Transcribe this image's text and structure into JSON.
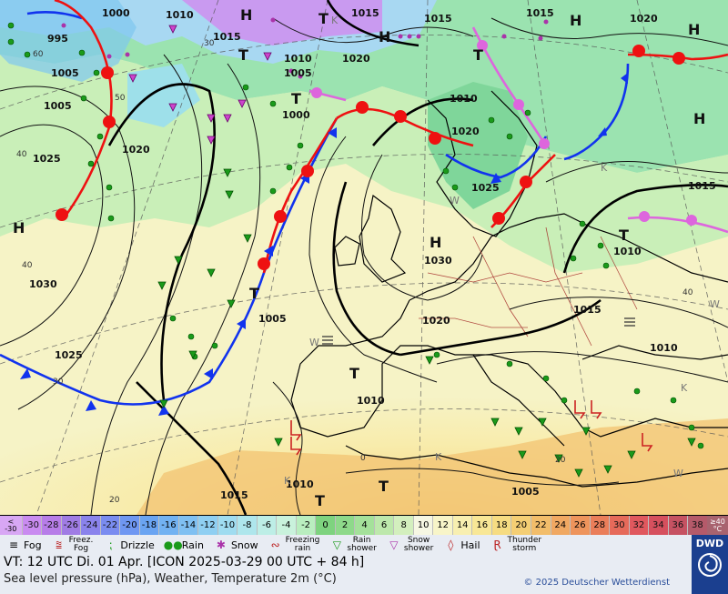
{
  "map": {
    "highs": [
      "H",
      "H",
      "H",
      "H",
      "H",
      "H",
      "H"
    ],
    "troughs": [
      "T",
      "T",
      "T",
      "T",
      "T",
      "T",
      "T",
      "T",
      "T"
    ],
    "isobar_labels": [
      "1000",
      "1010",
      "1015",
      "1015",
      "1015",
      "1020",
      "995",
      "1005",
      "1005",
      "1015",
      "1005",
      "1010",
      "1020",
      "1025",
      "1000",
      "1010",
      "1020",
      "1025",
      "1030",
      "1030",
      "1025",
      "1020",
      "1005",
      "1020",
      "1010",
      "1015",
      "1010",
      "1015",
      "1010",
      "1010",
      "1015",
      "1005"
    ],
    "temp_labels": [
      "60",
      "50",
      "40",
      "40",
      "30",
      "20",
      "30",
      "40",
      "20",
      "0"
    ],
    "k_labels": [
      "K",
      "K",
      "K",
      "K",
      "K"
    ],
    "w_labels": [
      "W",
      "W",
      "W",
      "W"
    ]
  },
  "colors": {
    "cold_front": "#1133ee",
    "warm_front": "#ee1111",
    "occluded_front": "#dd66dd"
  },
  "scale": {
    "min_label_top": "<",
    "min_label_bottom": "-30",
    "max_label_top": "≥40",
    "max_label_bottom": "°C",
    "values": [
      "-30",
      "-28",
      "-26",
      "-24",
      "-22",
      "-20",
      "-18",
      "-16",
      "-14",
      "-12",
      "-10",
      "-8",
      "-6",
      "-4",
      "-2",
      "0",
      "2",
      "4",
      "6",
      "8",
      "10",
      "12",
      "14",
      "16",
      "18",
      "20",
      "22",
      "24",
      "26",
      "28",
      "30",
      "32",
      "34",
      "36",
      "38"
    ],
    "colors": [
      "#c98bf0",
      "#b77de8",
      "#a07ce4",
      "#8a83ec",
      "#7a8cf0",
      "#6f97f2",
      "#6aa4f2",
      "#72b2f2",
      "#7fc0f2",
      "#8fcff2",
      "#9fdcf0",
      "#aee6ec",
      "#bdeee6",
      "#c9f2dc",
      "#b9eebf",
      "#7ed37f",
      "#8ed98a",
      "#a4e19a",
      "#bde8ac",
      "#d3efbe",
      "#f6f7e3",
      "#f8f5c8",
      "#f8efb0",
      "#f8e796",
      "#f6dc82",
      "#f4ce74",
      "#f2bd6a",
      "#f0a862",
      "#ee945c",
      "#ea7e5a",
      "#e66a5a",
      "#e0585e",
      "#d6505e",
      "#c65262",
      "#b55a6a"
    ]
  },
  "legend": {
    "fog": "Fog",
    "freezing_fog_1": "Freez.",
    "freezing_fog_2": "Fog",
    "drizzle": "Drizzle",
    "rain": "Rain",
    "snow": "Snow",
    "freezing_rain_1": "Freezing",
    "freezing_rain_2": "rain",
    "rain_shower_1": "Rain",
    "rain_shower_2": "shower",
    "snow_shower_1": "Snow",
    "snow_shower_2": "shower",
    "hail": "Hail",
    "thunderstorm_1": "Thunder",
    "thunderstorm_2": "storm"
  },
  "info": {
    "valid_time": "VT: 12 UTC Di.  01 Apr. [ICON 2025-03-29  00 UTC + 84 h]",
    "description": "Sea level pressure (hPa), Weather, Temperature 2m (°C)",
    "copyright": "© 2025 Deutscher Wetterdienst",
    "logo_text": "DWD"
  }
}
